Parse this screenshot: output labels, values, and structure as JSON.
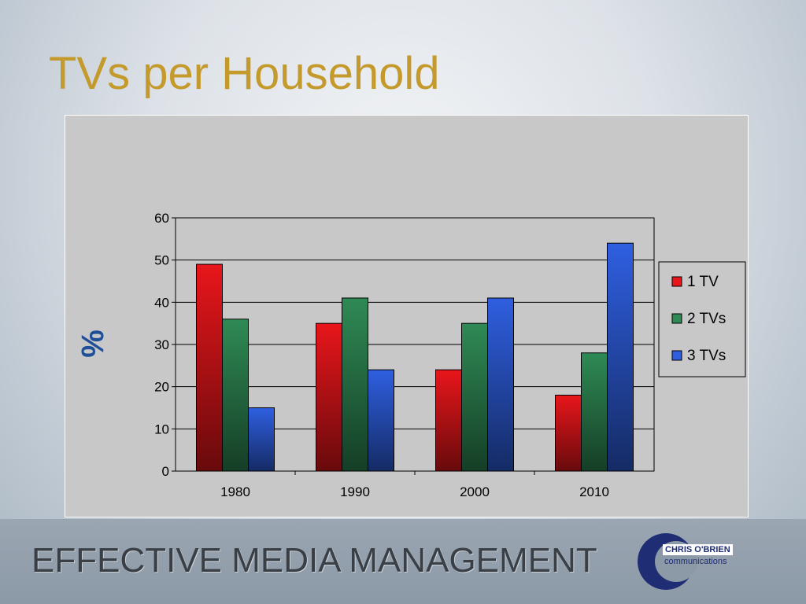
{
  "slide": {
    "title": "TVs per Household",
    "footer_text": "EFFECTIVE MEDIA MANAGEMENT",
    "logo_name": "CHRIS O'BRIEN",
    "logo_sub": "communications"
  },
  "chart_data": {
    "type": "bar",
    "title": "",
    "xlabel": "",
    "ylabel": "%",
    "categories": [
      "1980",
      "1990",
      "2000",
      "2010"
    ],
    "series": [
      {
        "name": "1 TV",
        "values": [
          49,
          35,
          24,
          18
        ],
        "color": "#e8161b"
      },
      {
        "name": "2 TVs",
        "values": [
          36,
          41,
          35,
          28
        ],
        "color": "#2f8a55"
      },
      {
        "name": "3 TVs",
        "values": [
          15,
          24,
          41,
          54
        ],
        "color": "#2f5fe0"
      }
    ],
    "ylim": [
      0,
      60
    ],
    "yticks": [
      0,
      10,
      20,
      30,
      40,
      50,
      60
    ],
    "grid": true,
    "legend": "right"
  }
}
